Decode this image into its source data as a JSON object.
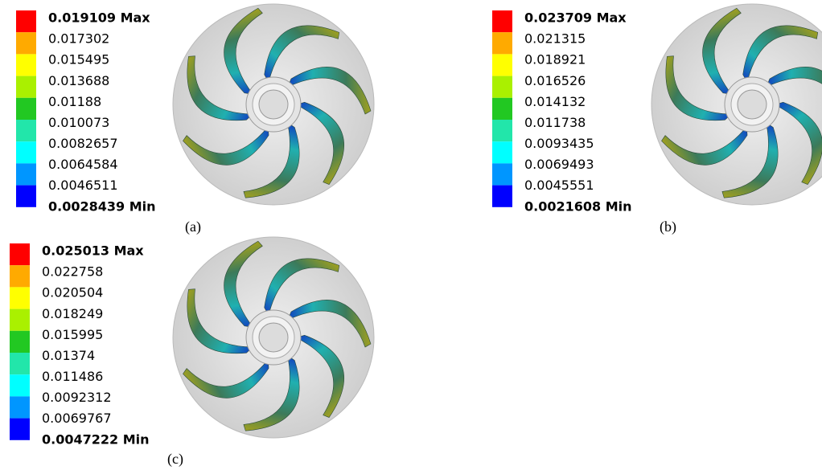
{
  "legend_colors": [
    "#ff0000",
    "#ffaa00",
    "#ffff00",
    "#aaf000",
    "#22c822",
    "#22e6aa",
    "#00ffff",
    "#0096ff",
    "#0000ff"
  ],
  "panels": [
    {
      "labels": [
        "0.019109 Max",
        "0.017302",
        "0.015495",
        "0.013688",
        "0.01188",
        "0.010073",
        "0.0082657",
        "0.0064584",
        "0.0046511",
        "0.0028439 Min"
      ],
      "caption": "(a)"
    },
    {
      "labels": [
        "0.023709 Max",
        "0.021315",
        "0.018921",
        "0.016526",
        "0.014132",
        "0.011738",
        "0.0093435",
        "0.0069493",
        "0.0045551",
        "0.0021608 Min"
      ],
      "caption": "(b)"
    },
    {
      "labels": [
        "0.025013 Max",
        "0.022758",
        "0.020504",
        "0.018249",
        "0.015995",
        "0.01374",
        "0.011486",
        "0.0092312",
        "0.0069767",
        "0.0047222 Min"
      ],
      "caption": "(c)"
    }
  ]
}
